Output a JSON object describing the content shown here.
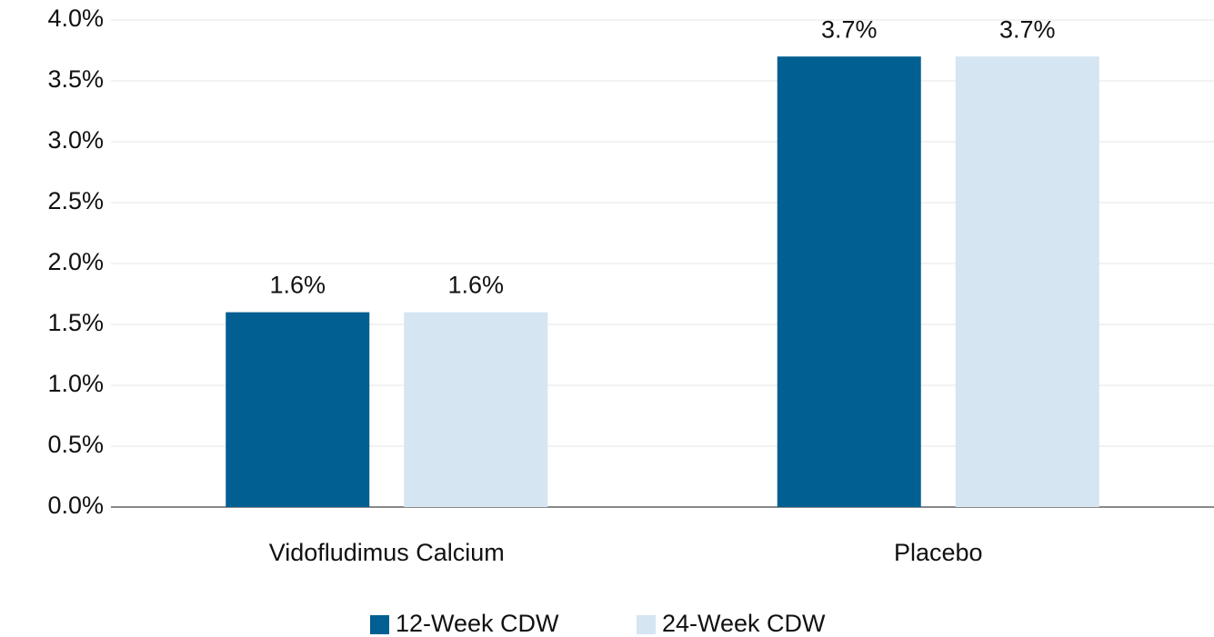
{
  "chart_data": {
    "type": "bar",
    "categories": [
      "Vidofludimus Calcium",
      "Placebo"
    ],
    "series": [
      {
        "name": "12-Week CDW",
        "color": "#025f91",
        "values": [
          1.6,
          3.7
        ],
        "value_labels": [
          "1.6%",
          "3.7%"
        ]
      },
      {
        "name": "24-Week CDW",
        "color": "#d5e5f1",
        "values": [
          1.6,
          3.7
        ],
        "value_labels": [
          "1.6%",
          "3.7%"
        ]
      }
    ],
    "ylim": [
      0,
      4
    ],
    "yticks": [
      {
        "value": 0,
        "label": "0.0%"
      },
      {
        "value": 0.5,
        "label": "0.5%"
      },
      {
        "value": 1,
        "label": "1.0%"
      },
      {
        "value": 1.5,
        "label": "1.5%"
      },
      {
        "value": 2,
        "label": "2.0%"
      },
      {
        "value": 2.5,
        "label": "2.5%"
      },
      {
        "value": 3,
        "label": "3.0%"
      },
      {
        "value": 3.5,
        "label": "3.5%"
      },
      {
        "value": 4,
        "label": "4.0%"
      }
    ],
    "grid": true,
    "legend": "bottom"
  }
}
